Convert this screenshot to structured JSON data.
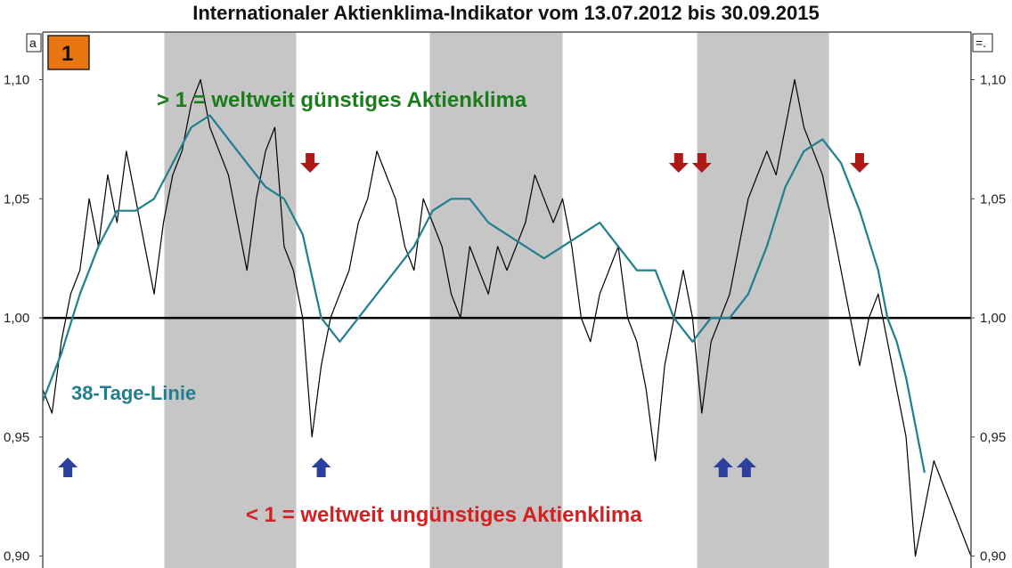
{
  "window": {
    "title": "Internationaler Aktienklima-Indikator vom 13.07.2012 bis 30.09.2015",
    "corner_left": "a",
    "corner_right": "=.",
    "badge": "1"
  },
  "chart_data": {
    "type": "line",
    "title": "Internationaler Aktienklima-Indikator vom 13.07.2012 bis 30.09.2015",
    "x_range": [
      0,
      1
    ],
    "ylim": [
      0.9,
      1.1
    ],
    "yticks": [
      0.9,
      0.95,
      1.0,
      1.05,
      1.1
    ],
    "ytick_labels": [
      "0,90",
      "0,95",
      "1,00",
      "1,05",
      "1,10"
    ],
    "reference_line": 1.0,
    "shaded_bands": [
      [
        0.131,
        0.273
      ],
      [
        0.417,
        0.56
      ],
      [
        0.705,
        0.847
      ]
    ],
    "series": [
      {
        "name": "",
        "color": "#000000",
        "x": [
          0.0,
          0.01,
          0.02,
          0.03,
          0.04,
          0.05,
          0.06,
          0.07,
          0.08,
          0.09,
          0.1,
          0.11,
          0.12,
          0.13,
          0.14,
          0.15,
          0.16,
          0.17,
          0.18,
          0.19,
          0.2,
          0.21,
          0.22,
          0.23,
          0.24,
          0.25,
          0.26,
          0.27,
          0.28,
          0.29,
          0.3,
          0.31,
          0.32,
          0.33,
          0.34,
          0.35,
          0.36,
          0.37,
          0.38,
          0.39,
          0.4,
          0.41,
          0.42,
          0.43,
          0.44,
          0.45,
          0.46,
          0.47,
          0.48,
          0.49,
          0.5,
          0.51,
          0.52,
          0.53,
          0.54,
          0.55,
          0.56,
          0.57,
          0.58,
          0.59,
          0.6,
          0.61,
          0.62,
          0.63,
          0.64,
          0.65,
          0.66,
          0.67,
          0.68,
          0.69,
          0.7,
          0.71,
          0.72,
          0.73,
          0.74,
          0.75,
          0.76,
          0.77,
          0.78,
          0.79,
          0.8,
          0.81,
          0.82,
          0.83,
          0.84,
          0.85,
          0.86,
          0.87,
          0.88,
          0.89,
          0.9,
          0.91,
          0.92,
          0.93,
          0.94,
          0.95,
          0.96,
          0.97,
          0.98,
          0.99,
          1.0
        ],
        "y": [
          0.97,
          0.96,
          0.99,
          1.01,
          1.02,
          1.05,
          1.03,
          1.06,
          1.04,
          1.07,
          1.05,
          1.03,
          1.01,
          1.04,
          1.06,
          1.07,
          1.09,
          1.1,
          1.08,
          1.07,
          1.06,
          1.04,
          1.02,
          1.05,
          1.07,
          1.08,
          1.03,
          1.02,
          1.0,
          0.95,
          0.98,
          1.0,
          1.01,
          1.02,
          1.04,
          1.05,
          1.07,
          1.06,
          1.05,
          1.03,
          1.02,
          1.05,
          1.04,
          1.03,
          1.01,
          1.0,
          1.03,
          1.02,
          1.01,
          1.03,
          1.02,
          1.03,
          1.04,
          1.06,
          1.05,
          1.04,
          1.05,
          1.03,
          1.0,
          0.99,
          1.01,
          1.02,
          1.03,
          1.0,
          0.99,
          0.97,
          0.94,
          0.98,
          1.0,
          1.02,
          1.0,
          0.96,
          0.99,
          1.0,
          1.01,
          1.03,
          1.05,
          1.06,
          1.07,
          1.06,
          1.08,
          1.1,
          1.08,
          1.07,
          1.06,
          1.04,
          1.02,
          1.0,
          0.98,
          1.0,
          1.01,
          0.99,
          0.97,
          0.95,
          0.9,
          0.92,
          0.94,
          0.93,
          0.92,
          0.91,
          0.9
        ]
      },
      {
        "name": "38-Tage-Linie",
        "color": "#1f7f8f",
        "x": [
          0.0,
          0.02,
          0.04,
          0.06,
          0.08,
          0.1,
          0.12,
          0.14,
          0.16,
          0.18,
          0.2,
          0.22,
          0.24,
          0.26,
          0.28,
          0.3,
          0.32,
          0.34,
          0.36,
          0.38,
          0.4,
          0.42,
          0.44,
          0.46,
          0.48,
          0.5,
          0.52,
          0.54,
          0.56,
          0.58,
          0.6,
          0.62,
          0.64,
          0.66,
          0.68,
          0.7,
          0.72,
          0.74,
          0.76,
          0.78,
          0.8,
          0.82,
          0.84,
          0.86,
          0.88,
          0.9,
          0.91,
          0.92,
          0.93,
          0.94,
          0.95
        ],
        "y": [
          0.965,
          0.985,
          1.01,
          1.03,
          1.045,
          1.045,
          1.05,
          1.065,
          1.08,
          1.085,
          1.075,
          1.065,
          1.055,
          1.05,
          1.035,
          1.0,
          0.99,
          1.0,
          1.01,
          1.02,
          1.03,
          1.045,
          1.05,
          1.05,
          1.04,
          1.035,
          1.03,
          1.025,
          1.03,
          1.035,
          1.04,
          1.03,
          1.02,
          1.02,
          1.0,
          0.99,
          1.0,
          1.0,
          1.01,
          1.03,
          1.055,
          1.07,
          1.075,
          1.065,
          1.045,
          1.02,
          1.0,
          0.99,
          0.975,
          0.955,
          0.935
        ]
      }
    ],
    "arrows": [
      {
        "direction": "up",
        "color": "#2b3f9e",
        "x": 0.027
      },
      {
        "direction": "up",
        "color": "#2b3f9e",
        "x": 0.3
      },
      {
        "direction": "up",
        "color": "#2b3f9e",
        "x": 0.733
      },
      {
        "direction": "up",
        "color": "#2b3f9e",
        "x": 0.758
      },
      {
        "direction": "down",
        "color": "#b01818",
        "x": 0.288
      },
      {
        "direction": "down",
        "color": "#b01818",
        "x": 0.685
      },
      {
        "direction": "down",
        "color": "#b01818",
        "x": 0.71
      },
      {
        "direction": "down",
        "color": "#b01818",
        "x": 0.88
      }
    ],
    "annotations": [
      {
        "text": "> 1 = weltweit günstiges Aktienklima",
        "color": "#1a7d1a"
      },
      {
        "text": "38-Tage-Linie",
        "color": "#1f7f8f"
      },
      {
        "text": "< 1 = weltweit ungünstiges Aktienklima",
        "color": "#d42020"
      }
    ]
  }
}
